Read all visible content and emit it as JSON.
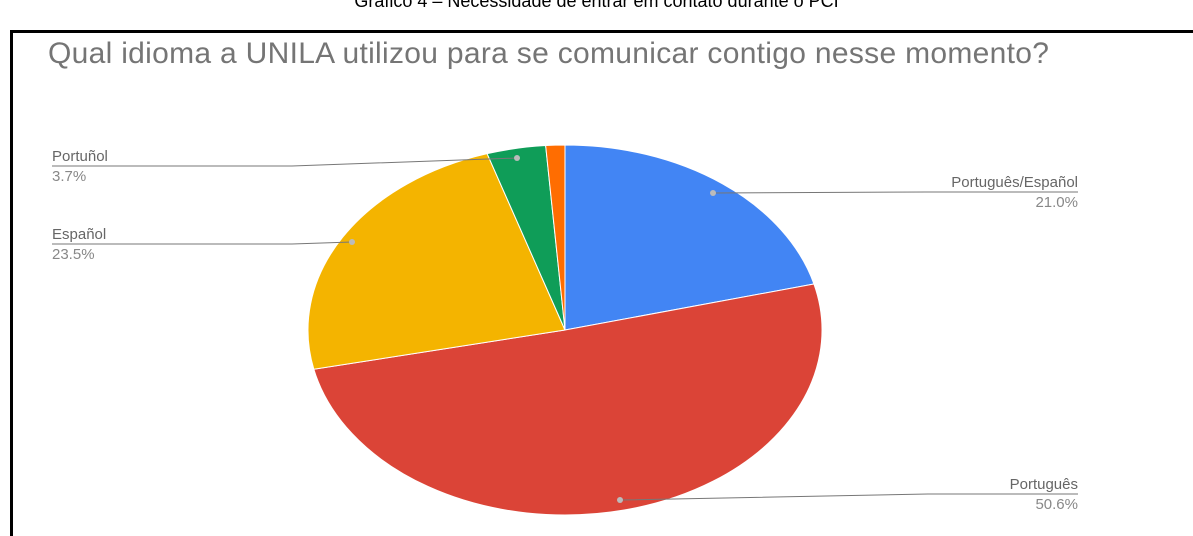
{
  "caption": "Gráfico 4 – Necessidade de entrar em contato durante o PCI",
  "chart_data": {
    "type": "pie",
    "title": "Qual idioma a UNILA utilizou para se comunicar contigo nesse momento?",
    "categories": [
      "Português/Español",
      "Português",
      "Español",
      "Portuñol",
      null
    ],
    "values": [
      21.0,
      50.6,
      23.5,
      3.7,
      1.2
    ],
    "value_labels": [
      "21.0%",
      "50.6%",
      "23.5%",
      "3.7%",
      null
    ],
    "colors": [
      "#4285f4",
      "#db4437",
      "#f4b400",
      "#0f9d58",
      "#ff6d01"
    ]
  }
}
